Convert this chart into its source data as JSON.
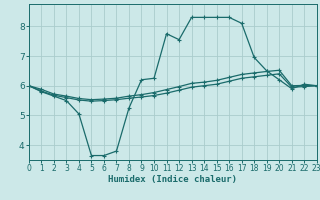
{
  "background_color": "#cce8e8",
  "grid_color": "#aacccc",
  "line_color": "#1a6b6b",
  "xlabel": "Humidex (Indice chaleur)",
  "xlim": [
    0,
    23
  ],
  "ylim": [
    3.5,
    8.75
  ],
  "yticks": [
    4,
    5,
    6,
    7,
    8
  ],
  "xticks": [
    0,
    1,
    2,
    3,
    4,
    5,
    6,
    7,
    8,
    9,
    10,
    11,
    12,
    13,
    14,
    15,
    16,
    17,
    18,
    19,
    20,
    21,
    22,
    23
  ],
  "line1_x": [
    0,
    1,
    2,
    3,
    4,
    5,
    6,
    7,
    8,
    9,
    10,
    11,
    12,
    13,
    14,
    15,
    16,
    17,
    18,
    19,
    20,
    21,
    22,
    23
  ],
  "line1_y": [
    6.0,
    5.8,
    5.65,
    5.5,
    5.05,
    3.65,
    3.65,
    3.8,
    5.25,
    6.2,
    6.25,
    7.75,
    7.55,
    8.3,
    8.3,
    8.3,
    8.3,
    8.1,
    6.95,
    6.5,
    6.2,
    5.9,
    6.05,
    6.0
  ],
  "line2_x": [
    0,
    1,
    2,
    3,
    4,
    5,
    6,
    7,
    8,
    9,
    10,
    11,
    12,
    13,
    14,
    15,
    16,
    17,
    18,
    19,
    20,
    21,
    22,
    23
  ],
  "line2_y": [
    6.0,
    5.82,
    5.68,
    5.6,
    5.52,
    5.48,
    5.5,
    5.53,
    5.58,
    5.62,
    5.67,
    5.75,
    5.85,
    5.95,
    6.0,
    6.05,
    6.15,
    6.25,
    6.3,
    6.35,
    6.4,
    5.95,
    5.97,
    6.0
  ],
  "line3_x": [
    0,
    1,
    2,
    3,
    4,
    5,
    6,
    7,
    8,
    9,
    10,
    11,
    12,
    13,
    14,
    15,
    16,
    17,
    18,
    19,
    20,
    21,
    22,
    23
  ],
  "line3_y": [
    6.0,
    5.88,
    5.72,
    5.65,
    5.57,
    5.53,
    5.55,
    5.58,
    5.65,
    5.7,
    5.77,
    5.87,
    5.97,
    6.08,
    6.12,
    6.18,
    6.28,
    6.38,
    6.43,
    6.48,
    6.52,
    6.0,
    6.01,
    6.0
  ]
}
